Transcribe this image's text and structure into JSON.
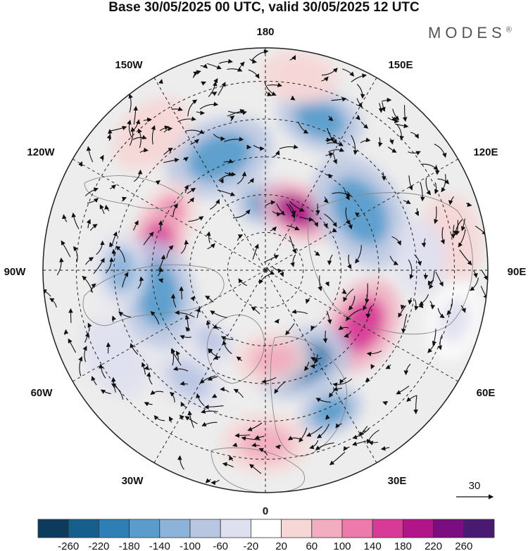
{
  "title": "Base 30/05/2025 00 UTC, valid 30/05/2025 12 UTC",
  "brand": "MODES",
  "brand_mark": "®",
  "longitude_labels": {
    "top": "180",
    "top_left": "150W",
    "top_right": "150E",
    "upper_left": "120W",
    "upper_right": "120E",
    "left": "90W",
    "right": "90E",
    "lower_left": "60W",
    "lower_right": "60E",
    "bottom_left": "30W",
    "bottom_right": "30E",
    "bottom": "0"
  },
  "wind_reference": {
    "value": "30"
  },
  "colorbar": {
    "ticks": [
      "-260",
      "-220",
      "-180",
      "-140",
      "-100",
      "-60",
      "-20",
      "20",
      "60",
      "100",
      "140",
      "180",
      "220",
      "260"
    ],
    "colors": [
      "#0d3b5e",
      "#165f8c",
      "#2e7fb5",
      "#5a9dcc",
      "#8cb4da",
      "#b9c6e2",
      "#dfe0ef",
      "#ffffff",
      "#f7d6d6",
      "#f2aec0",
      "#ec7bac",
      "#d83b97",
      "#b0158a",
      "#7b0d80",
      "#4a1a73"
    ]
  },
  "anomalies": [
    {
      "lon": -158,
      "r": 0.55,
      "v": -140,
      "size": 0.2
    },
    {
      "lon": 160,
      "r": 0.72,
      "v": -150,
      "size": 0.16
    },
    {
      "lon": 178,
      "r": 0.3,
      "v": -140,
      "size": 0.12
    },
    {
      "lon": 152,
      "r": 0.3,
      "v": 200,
      "size": 0.14
    },
    {
      "lon": 122,
      "r": 0.5,
      "v": -160,
      "size": 0.22
    },
    {
      "lon": -118,
      "r": 0.5,
      "v": 120,
      "size": 0.14
    },
    {
      "lon": -103,
      "r": 0.5,
      "v": 180,
      "size": 0.14
    },
    {
      "lon": -78,
      "r": 0.5,
      "v": -170,
      "size": 0.2
    },
    {
      "lon": -90,
      "r": 0.65,
      "v": -120,
      "size": 0.14
    },
    {
      "lon": 60,
      "r": 0.5,
      "v": 160,
      "size": 0.18
    },
    {
      "lon": 22,
      "r": 0.45,
      "v": -180,
      "size": 0.18
    },
    {
      "lon": 25,
      "r": 0.7,
      "v": -140,
      "size": 0.12
    },
    {
      "lon": 5,
      "r": 0.4,
      "v": 80,
      "size": 0.14
    },
    {
      "lon": 0,
      "r": 0.78,
      "v": 80,
      "size": 0.16
    },
    {
      "lon": -38,
      "r": 0.4,
      "v": -60,
      "size": 0.1
    },
    {
      "lon": -35,
      "r": 0.6,
      "v": -60,
      "size": 0.14
    },
    {
      "lon": -140,
      "r": 0.8,
      "v": 60,
      "size": 0.16
    },
    {
      "lon": 170,
      "r": 0.88,
      "v": 60,
      "size": 0.14
    },
    {
      "lon": 100,
      "r": 0.85,
      "v": 50,
      "size": 0.16
    },
    {
      "lon": 95,
      "r": 0.7,
      "v": -50,
      "size": 0.14
    },
    {
      "lon": -60,
      "r": 0.78,
      "v": -50,
      "size": 0.16
    },
    {
      "lon": 75,
      "r": 0.88,
      "v": -40,
      "size": 0.14
    }
  ]
}
